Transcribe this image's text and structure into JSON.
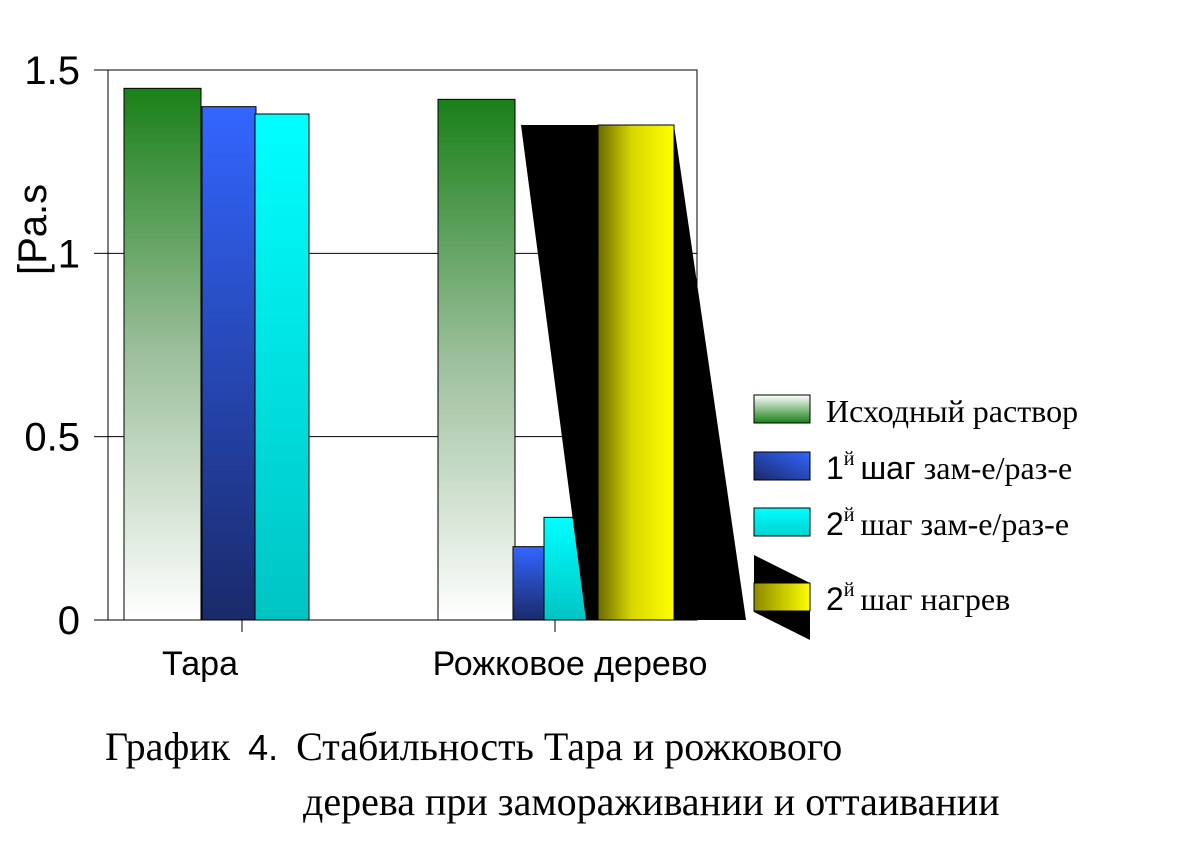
{
  "chart_data": {
    "type": "bar",
    "categories": [
      "Тара",
      "Рожковое дерево"
    ],
    "ylabel": "[Pa.s",
    "ylim": [
      0,
      1.5
    ],
    "yticks": [
      "0",
      "0.5",
      "1",
      "1.5"
    ],
    "grid": true,
    "legend_position": "right",
    "series": [
      {
        "name": "Исходный раствор",
        "legend_prefix": "",
        "legend_sup": "",
        "legend_rest": "Исходный раствор",
        "values": [
          1.45,
          1.42
        ],
        "color": "#1a8019"
      },
      {
        "name": "1й шаг зам-е/раз-е",
        "legend_prefix": "1",
        "legend_sup": "й",
        "legend_word": "шаг",
        "legend_rest": "зам-е/раз-е",
        "values": [
          1.4,
          0.2
        ],
        "color": "#3366ff"
      },
      {
        "name": "2й шаг зам-е/раз-е",
        "legend_prefix": "2",
        "legend_sup": "й",
        "legend_word": "шаг",
        "legend_rest": "зам-е/раз-е",
        "values": [
          1.38,
          0.28
        ],
        "color": "#00ffff"
      },
      {
        "name": "2й шаг нагрев",
        "legend_prefix": "2",
        "legend_sup": "й",
        "legend_word": "шаг",
        "legend_rest": "нагрев",
        "values": [
          null,
          1.35
        ],
        "color": "#ffff00"
      }
    ]
  },
  "caption": {
    "prefix": "График",
    "number": "4.",
    "line1_rest": "Стабильность Тара и рожкового",
    "line2": "дерева при замораживании и оттаивании"
  }
}
